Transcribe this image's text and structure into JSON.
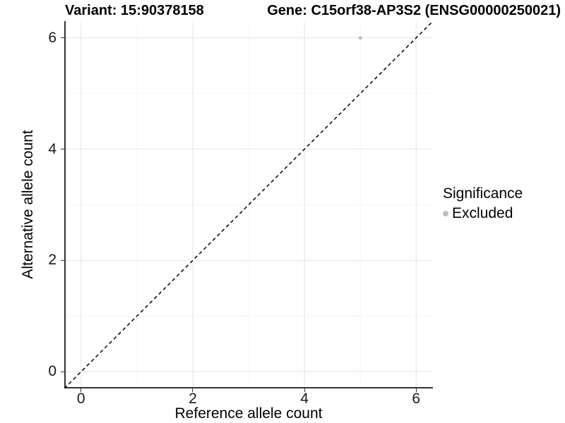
{
  "chart_data": {
    "type": "scatter",
    "title_left": "Variant: 15:90378158",
    "title_right": "Gene: C15orf38-AP3S2 (ENSG00000250021)",
    "xlabel": "Reference allele count",
    "ylabel": "Alternative allele count",
    "xlim": [
      -0.3,
      6.3
    ],
    "ylim": [
      -0.3,
      6.3
    ],
    "x_ticks": [
      0,
      2,
      4,
      6
    ],
    "y_ticks": [
      0,
      2,
      4,
      6
    ],
    "x_minor_ticks": [
      1,
      3,
      5
    ],
    "y_minor_ticks": [
      1,
      3,
      5
    ],
    "grid": true,
    "reference_line": {
      "style": "dashed",
      "equation": "y = x",
      "color": "#000000"
    },
    "points": [
      {
        "x": 5,
        "y": 6,
        "series": "Excluded"
      }
    ],
    "legend": {
      "position": "right",
      "title": "Significance",
      "entries": [
        {
          "label": "Excluded",
          "color": "#bebebe",
          "marker": "circle"
        }
      ]
    },
    "colors": {
      "point": "#bebebe",
      "grid_major": "#ebebeb",
      "grid_minor": "#f5f5f5",
      "axis_line": "#333333",
      "tick_text": "#1a1a1a",
      "text": "#000000"
    }
  }
}
